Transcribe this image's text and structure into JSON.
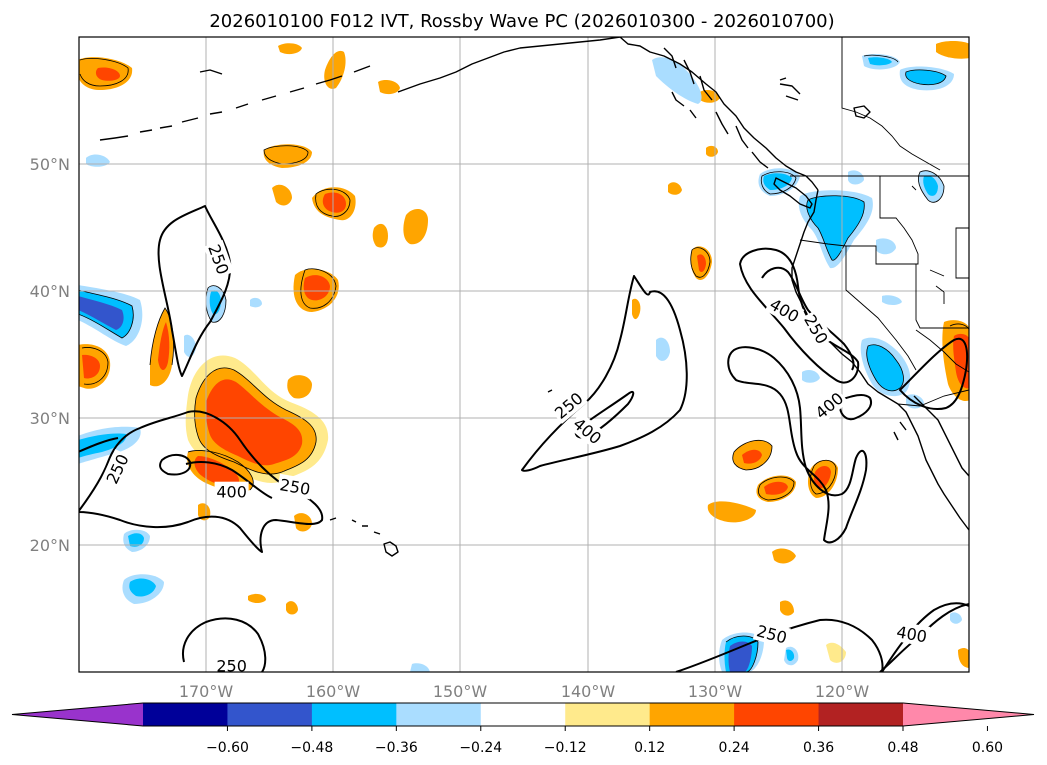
{
  "title": "2026010100 F012 IVT, Rossby Wave PC (2026010300 - 2026010700)",
  "map": {
    "lon_range": [
      -180,
      -110
    ],
    "lat_range": [
      10,
      60
    ],
    "lat_labels": [
      {
        "lat": 20,
        "text": "20°N"
      },
      {
        "lat": 30,
        "text": "30°N"
      },
      {
        "lat": 40,
        "text": "40°N"
      },
      {
        "lat": 50,
        "text": "50°N"
      }
    ],
    "lon_labels": [
      {
        "lon": -170,
        "text": "170°W"
      },
      {
        "lon": -160,
        "text": "160°W"
      },
      {
        "lon": -150,
        "text": "150°W"
      },
      {
        "lon": -140,
        "text": "140°W"
      },
      {
        "lon": -130,
        "text": "130°W"
      },
      {
        "lon": -120,
        "text": "120°W"
      }
    ],
    "contour_labels": [
      {
        "text": "250",
        "lon": -169,
        "lat": 42.5,
        "rot": 70
      },
      {
        "text": "250",
        "lon": -177,
        "lat": 26,
        "rot": -65
      },
      {
        "text": "400",
        "lon": -168,
        "lat": 24.2,
        "rot": 0
      },
      {
        "text": "250",
        "lon": -163,
        "lat": 24.6,
        "rot": 10
      },
      {
        "text": "250",
        "lon": -141.5,
        "lat": 31,
        "rot": -40
      },
      {
        "text": "400",
        "lon": -140,
        "lat": 29,
        "rot": 40
      },
      {
        "text": "400",
        "lon": -124.5,
        "lat": 38.5,
        "rot": 30
      },
      {
        "text": "250",
        "lon": -122,
        "lat": 37,
        "rot": 60
      },
      {
        "text": "400",
        "lon": -121,
        "lat": 31,
        "rot": -40
      },
      {
        "text": "250",
        "lon": -168,
        "lat": 10.5,
        "rot": 0
      },
      {
        "text": "250",
        "lon": -125.5,
        "lat": 13,
        "rot": 15
      },
      {
        "text": "400",
        "lon": -114.5,
        "lat": 13,
        "rot": 10
      }
    ]
  },
  "colorbar": {
    "bounds": [
      -0.72,
      -0.6,
      -0.48,
      -0.36,
      -0.24,
      -0.12,
      0.12,
      0.24,
      0.36,
      0.48,
      0.6,
      0.72
    ],
    "colors": [
      "#9933cc",
      "#000099",
      "#3355cc",
      "#00bfff",
      "#aaddff",
      "#ffffff",
      "#ffea8c",
      "#ffa500",
      "#ff4500",
      "#b22222",
      "#ff88aa"
    ],
    "ticks": [
      "−0.60",
      "−0.48",
      "−0.36",
      "−0.24",
      "−0.12",
      "0.12",
      "0.24",
      "0.36",
      "0.48",
      "0.60"
    ]
  }
}
